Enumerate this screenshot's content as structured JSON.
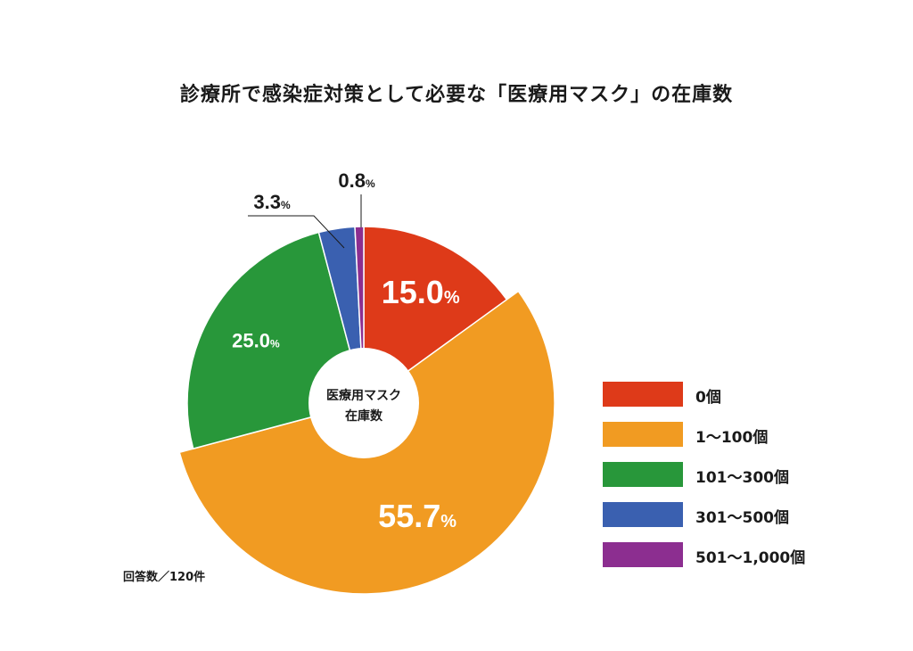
{
  "chart_data": {
    "type": "pie",
    "title": "診療所で感染症対策として必要な「医療用マスク」の在庫数",
    "center_label": [
      "医療用マスク",
      "在庫数"
    ],
    "slices": [
      {
        "label": "0個",
        "value": 15.0,
        "display": "15.0",
        "color": "#de3a19"
      },
      {
        "label": "1〜100個",
        "value": 55.7,
        "display": "55.7",
        "color": "#f19b22"
      },
      {
        "label": "101〜300個",
        "value": 25.0,
        "display": "25.0",
        "color": "#28973a"
      },
      {
        "label": "301〜500個",
        "value": 3.3,
        "display": "3.3",
        "color": "#3a60b0"
      },
      {
        "label": "501〜1,000個",
        "value": 0.8,
        "display": "0.8",
        "color": "#8c2e90"
      }
    ],
    "unit": "%",
    "legend_position": "right",
    "footnote": "回答数／120件"
  }
}
